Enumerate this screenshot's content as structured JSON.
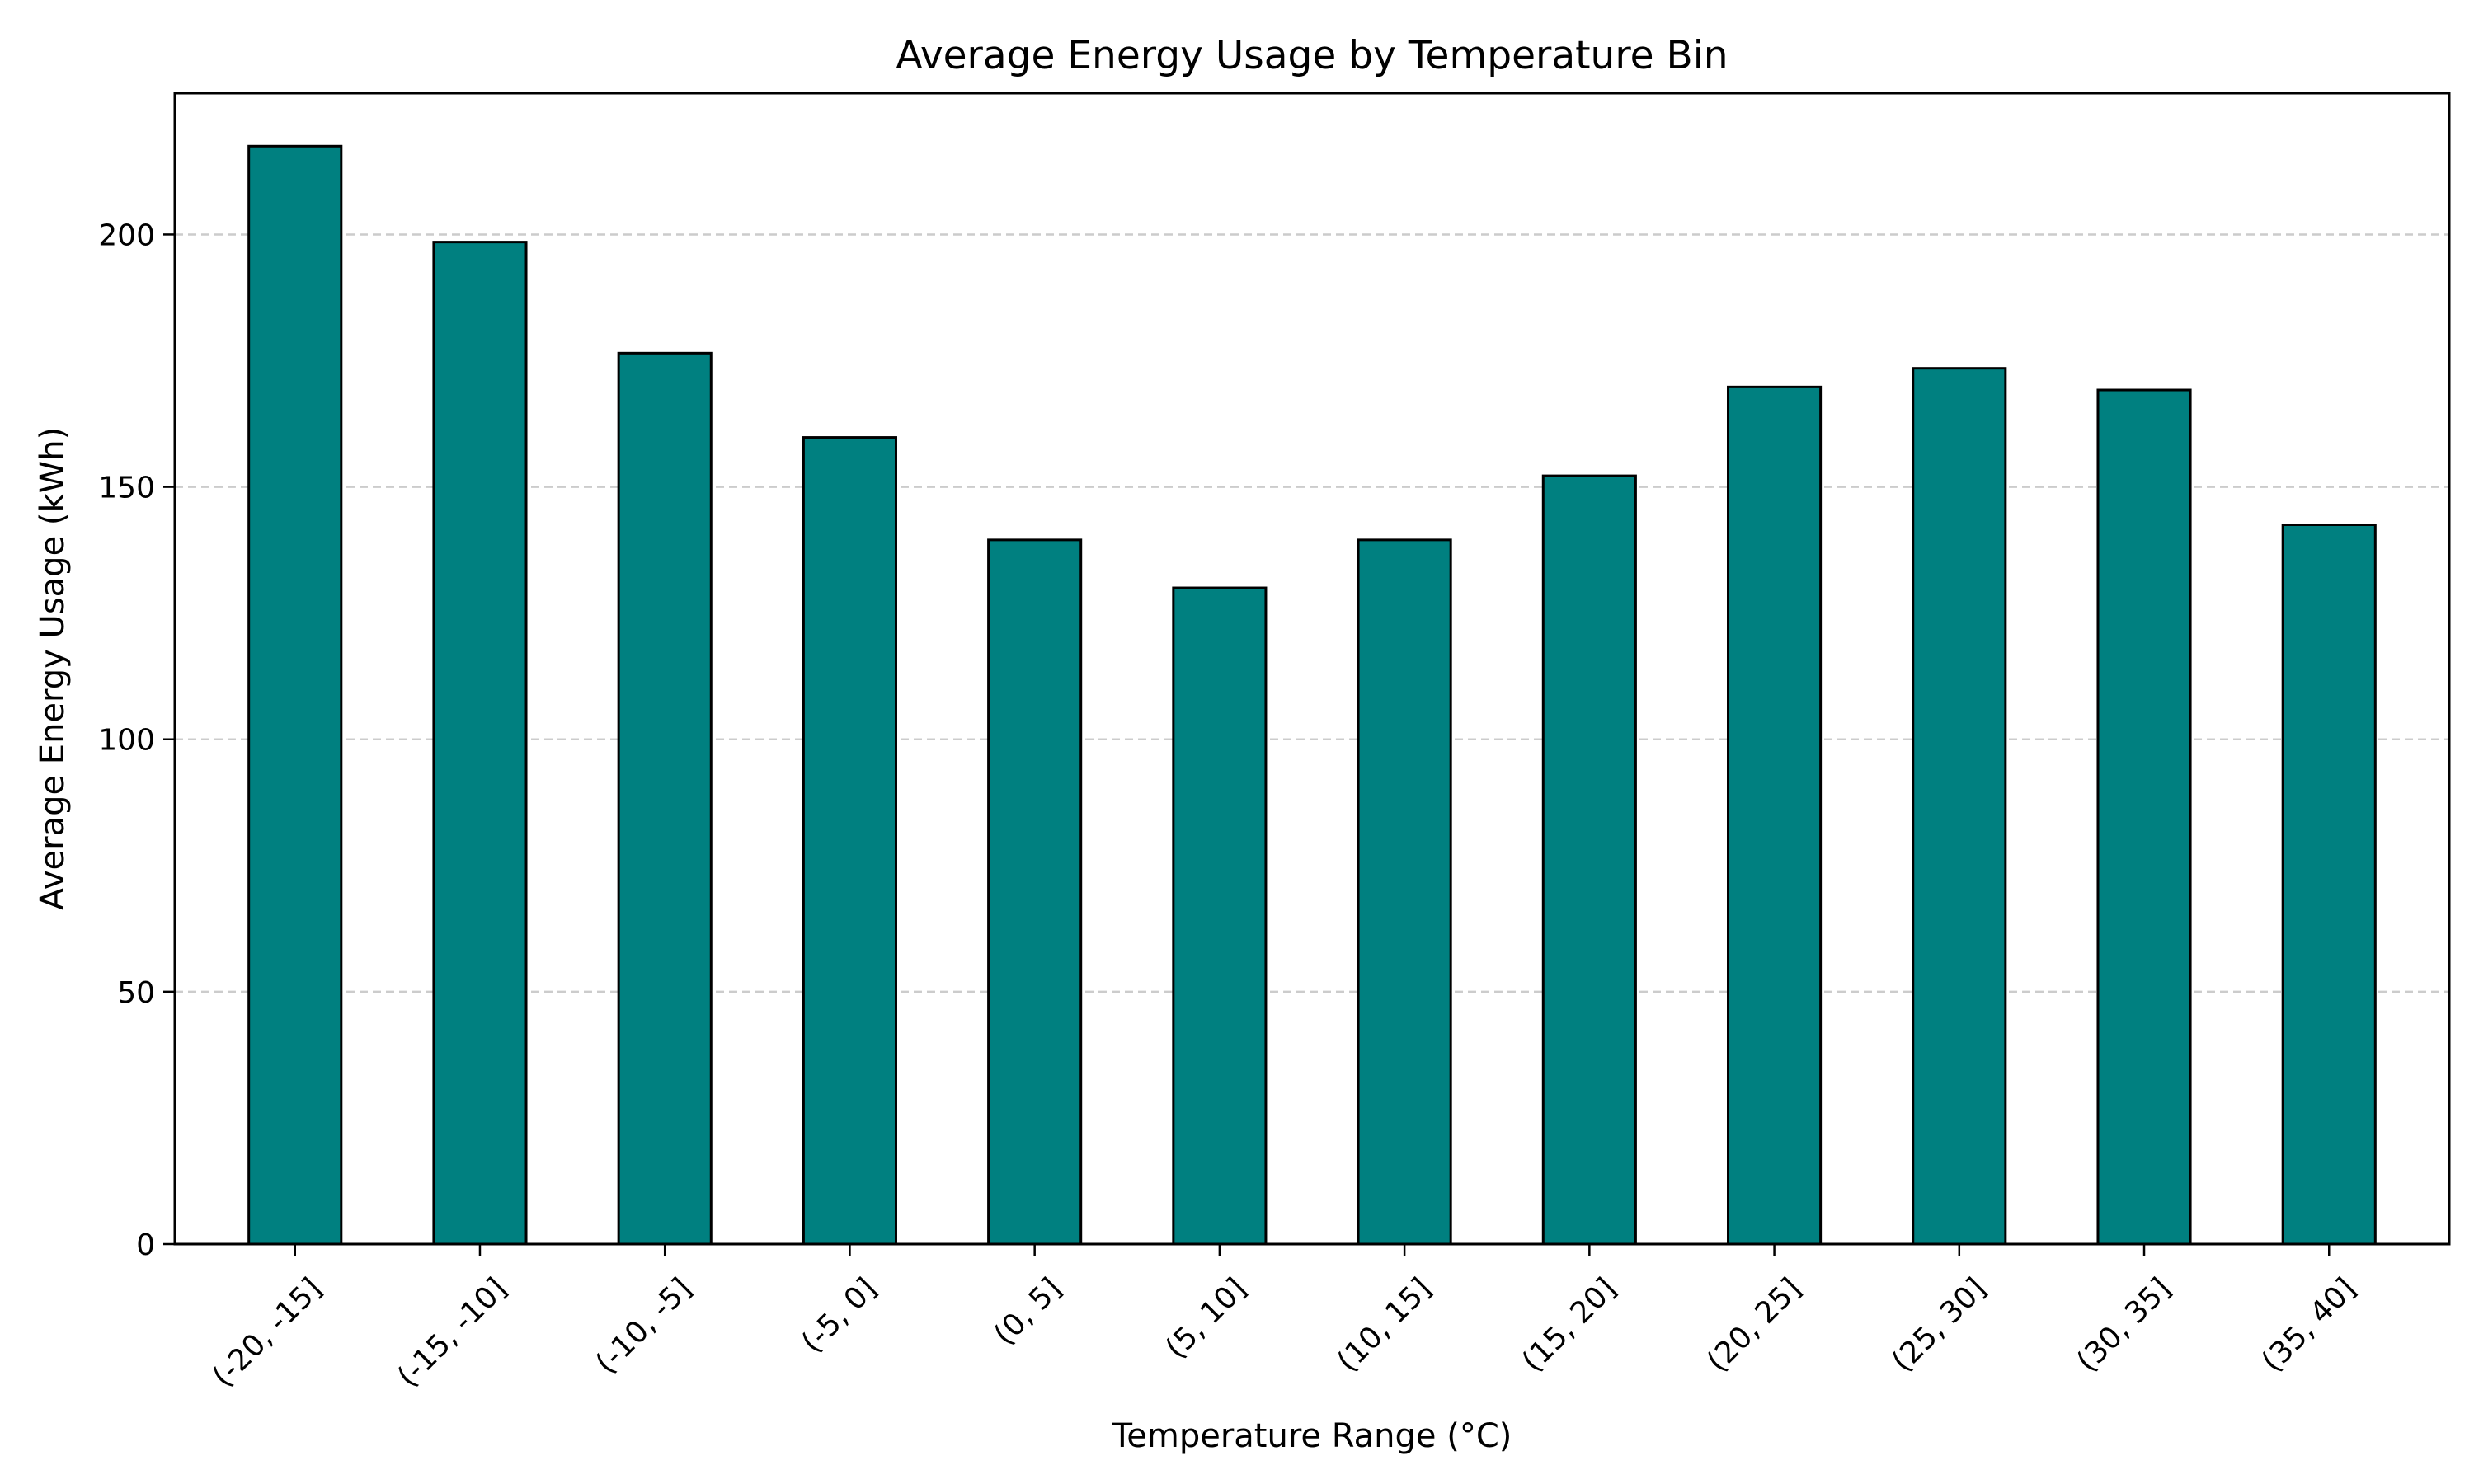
{
  "chart_data": {
    "type": "bar",
    "title": "Average Energy Usage by Temperature Bin",
    "xlabel": "Temperature Range (°C)",
    "ylabel": "Average Energy Usage (kWh)",
    "categories": [
      "(-20, -15]",
      "(-15, -10]",
      "(-10, -5]",
      "(-5, 0]",
      "(0, 5]",
      "(5, 10]",
      "(10, 15]",
      "(15, 20]",
      "(20, 25]",
      "(25, 30]",
      "(30, 35]",
      "(35, 40]"
    ],
    "values": [
      217.5,
      198.5,
      176.5,
      159.8,
      139.5,
      130.0,
      139.5,
      152.2,
      169.8,
      173.5,
      169.2,
      142.5
    ],
    "ylim": [
      0,
      228
    ],
    "yticks": [
      0,
      50,
      100,
      150,
      200
    ],
    "grid": {
      "y": true,
      "x": false
    },
    "colors": {
      "bar": "#008080",
      "edge": "#000000",
      "grid": "#cccccc"
    }
  }
}
